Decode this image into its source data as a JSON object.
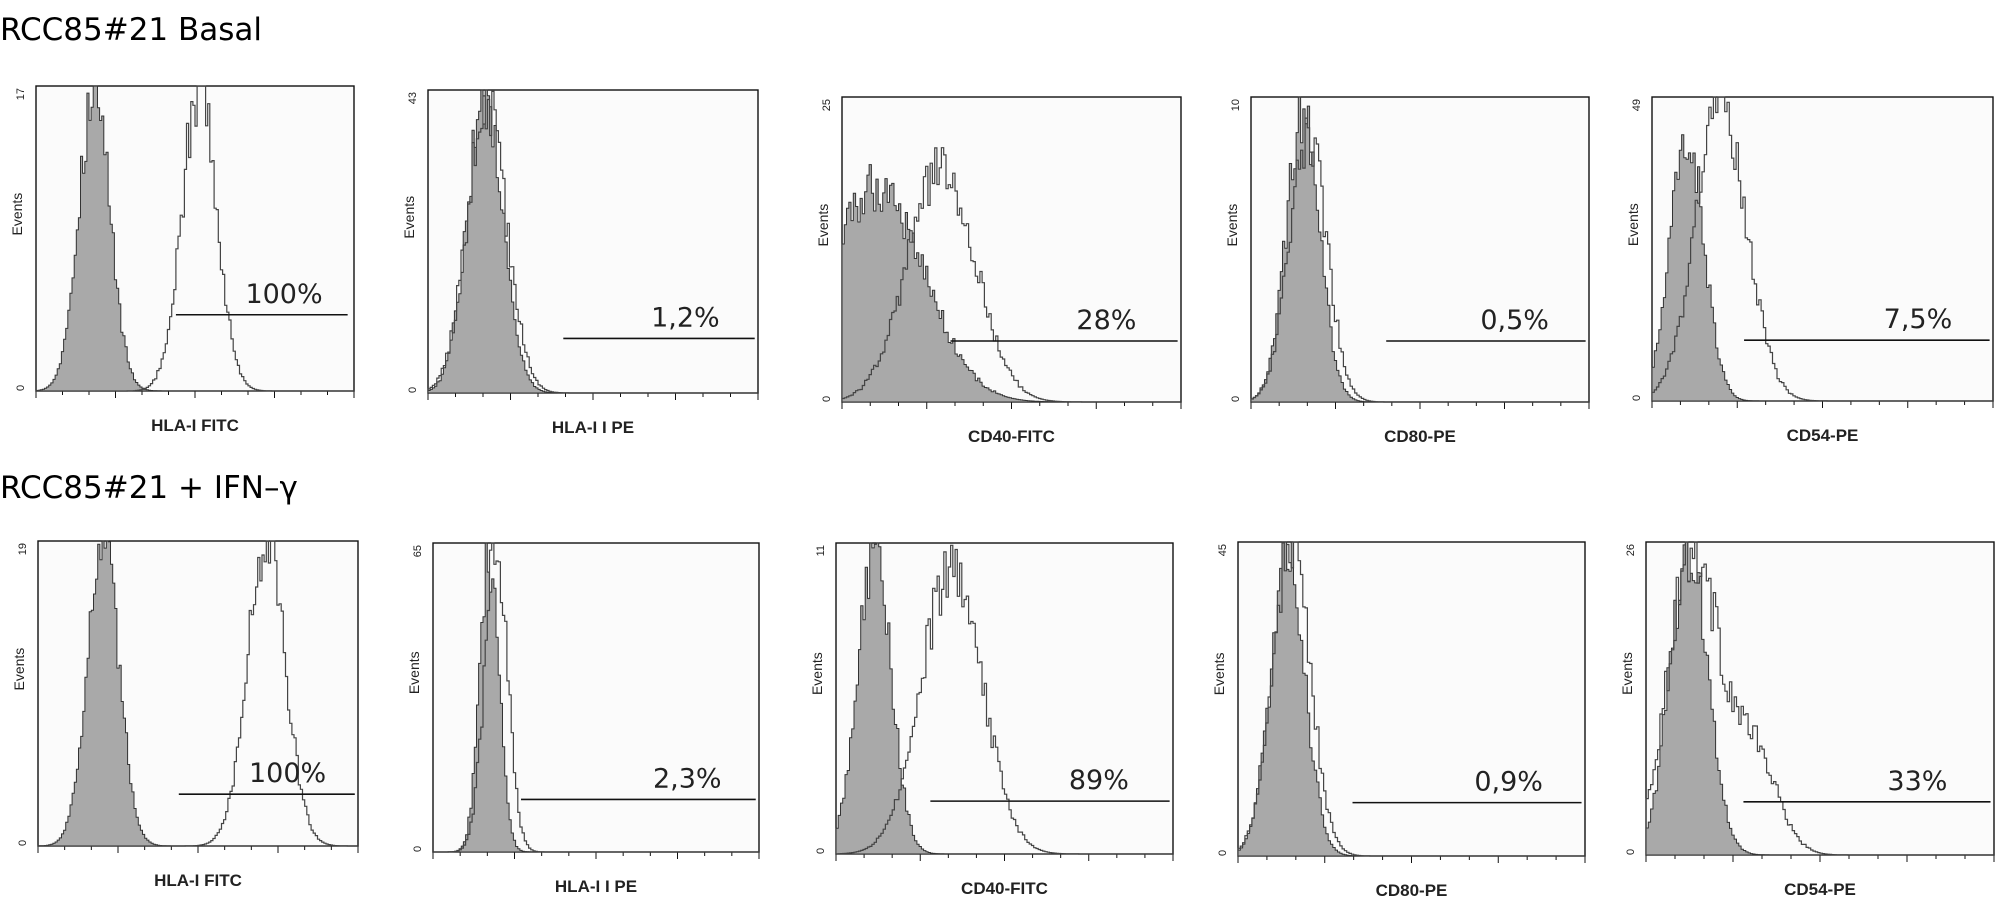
{
  "figure": {
    "row_titles": [
      "RCC85#21 Basal",
      "RCC85#21 + IFN–γ"
    ]
  },
  "chart_data": [
    {
      "type": "area",
      "row": 0,
      "col": 0,
      "marker": "HLA-I FITC",
      "ylabel": "Events",
      "ymax": 17,
      "ymin": 0,
      "percent": "100%",
      "gate": [
        0.44,
        0.98
      ],
      "gate_level": 0.25,
      "control": {
        "center": 0.18,
        "width": 0.05,
        "peak": 1.0
      },
      "sample": {
        "center": 0.51,
        "width": 0.055,
        "peak": 1.0,
        "shoulder": null
      }
    },
    {
      "type": "area",
      "row": 0,
      "col": 1,
      "marker": "HLA-I I PE",
      "ylabel": "Events",
      "ymax": 43,
      "ymin": 0,
      "percent": "1,2%",
      "gate": [
        0.41,
        0.99
      ],
      "gate_level": 0.18,
      "control": {
        "center": 0.17,
        "width": 0.055,
        "peak": 1.0
      },
      "sample": {
        "center": 0.175,
        "width": 0.06,
        "peak": 0.96,
        "shoulder": null
      }
    },
    {
      "type": "area",
      "row": 0,
      "col": 2,
      "marker": "CD40-FITC",
      "ylabel": "Events",
      "ymax": 25,
      "ymin": 0,
      "percent": "28%",
      "gate": [
        0.32,
        0.99
      ],
      "gate_level": 0.2,
      "control": {
        "center": 0.1,
        "width": 0.14,
        "peak": 0.72
      },
      "sample": {
        "center": 0.29,
        "width": 0.1,
        "peak": 0.78,
        "shoulder": null
      }
    },
    {
      "type": "area",
      "row": 0,
      "col": 3,
      "marker": "CD80-PE",
      "ylabel": "Events",
      "ymax": 10,
      "ymin": 0,
      "percent": "0,5%",
      "gate": [
        0.4,
        0.99
      ],
      "gate_level": 0.2,
      "control": {
        "center": 0.15,
        "width": 0.05,
        "peak": 0.95
      },
      "sample": {
        "center": 0.165,
        "width": 0.055,
        "peak": 0.9,
        "shoulder": null
      }
    },
    {
      "type": "area",
      "row": 0,
      "col": 4,
      "marker": "CD54-PE",
      "ylabel": "Events",
      "ymax": 49,
      "ymin": 0,
      "percent": "7,5%",
      "gate": [
        0.27,
        0.99
      ],
      "gate_level": 0.2,
      "control": {
        "center": 0.1,
        "width": 0.05,
        "peak": 0.88
      },
      "sample": {
        "center": 0.2,
        "width": 0.075,
        "peak": 1.0,
        "shoulder": null
      }
    },
    {
      "type": "area",
      "row": 1,
      "col": 0,
      "marker": "HLA-I FITC",
      "ylabel": "Events",
      "ymax": 19,
      "ymin": 0,
      "percent": "100%",
      "gate": [
        0.44,
        0.99
      ],
      "gate_level": 0.17,
      "control": {
        "center": 0.2,
        "width": 0.05,
        "peak": 1.0
      },
      "sample": {
        "center": 0.71,
        "width": 0.06,
        "peak": 1.0,
        "shoulder": null
      }
    },
    {
      "type": "area",
      "row": 1,
      "col": 1,
      "marker": "HLA-I I PE",
      "ylabel": "Events",
      "ymax": 65,
      "ymin": 0,
      "percent": "2,3%",
      "gate": [
        0.27,
        0.99
      ],
      "gate_level": 0.17,
      "control": {
        "center": 0.17,
        "width": 0.03,
        "peak": 0.97
      },
      "sample": {
        "center": 0.19,
        "width": 0.035,
        "peak": 1.0,
        "shoulder": null
      }
    },
    {
      "type": "area",
      "row": 1,
      "col": 2,
      "marker": "CD40-FITC",
      "ylabel": "Events",
      "ymax": 11,
      "ymin": 0,
      "percent": "89%",
      "gate": [
        0.28,
        0.99
      ],
      "gate_level": 0.17,
      "control": {
        "center": 0.11,
        "width": 0.05,
        "peak": 1.0
      },
      "sample": {
        "center": 0.34,
        "width": 0.09,
        "peak": 0.95,
        "shoulder": null
      }
    },
    {
      "type": "area",
      "row": 1,
      "col": 3,
      "marker": "CD80-PE",
      "ylabel": "Events",
      "ymax": 45,
      "ymin": 0,
      "percent": "0,9%",
      "gate": [
        0.33,
        0.99
      ],
      "gate_level": 0.17,
      "control": {
        "center": 0.14,
        "width": 0.05,
        "peak": 0.97
      },
      "sample": {
        "center": 0.15,
        "width": 0.055,
        "peak": 1.0,
        "shoulder": null
      }
    },
    {
      "type": "area",
      "row": 1,
      "col": 4,
      "marker": "CD54-PE",
      "ylabel": "Events",
      "ymax": 26,
      "ymin": 0,
      "percent": "33%",
      "gate": [
        0.28,
        0.99
      ],
      "gate_level": 0.17,
      "control": {
        "center": 0.12,
        "width": 0.055,
        "peak": 1.0
      },
      "sample": {
        "center": 0.13,
        "width": 0.07,
        "peak": 1.0,
        "shoulder": {
          "center": 0.3,
          "width": 0.07,
          "peak": 0.35
        }
      }
    }
  ]
}
